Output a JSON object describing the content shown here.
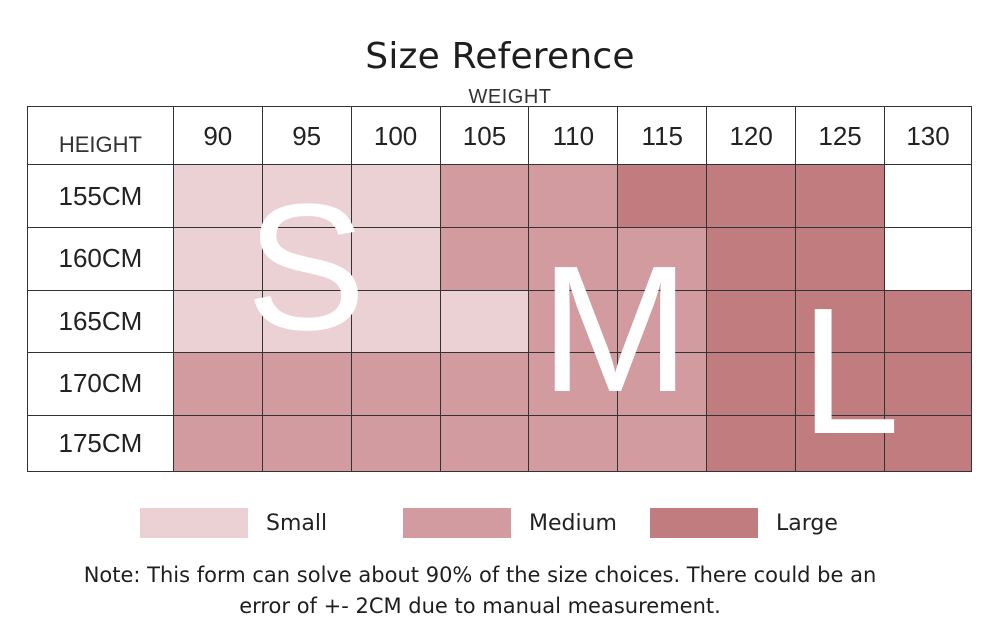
{
  "title": "Size Reference",
  "weight_label": "WEIGHT",
  "height_label": "HEIGHT",
  "weights": [
    "90",
    "95",
    "100",
    "105",
    "110",
    "115",
    "120",
    "125",
    "130"
  ],
  "rows": [
    {
      "height": "155CM",
      "sizes": [
        "S",
        "S",
        "S",
        "M",
        "M",
        "L",
        "L",
        "L",
        ""
      ]
    },
    {
      "height": "160CM",
      "sizes": [
        "S",
        "S",
        "S",
        "M",
        "M",
        "M",
        "L",
        "L",
        ""
      ]
    },
    {
      "height": "165CM",
      "sizes": [
        "S",
        "S",
        "S",
        "S",
        "M",
        "M",
        "L",
        "L",
        "L"
      ]
    },
    {
      "height": "170CM",
      "sizes": [
        "M",
        "M",
        "M",
        "M",
        "M",
        "M",
        "L",
        "L",
        "L"
      ]
    },
    {
      "height": "175CM",
      "sizes": [
        "M",
        "M",
        "M",
        "M",
        "M",
        "M",
        "L",
        "L",
        "L"
      ]
    }
  ],
  "size_letters": {
    "small": "S",
    "medium": "M",
    "large": "L"
  },
  "legend": [
    {
      "key": "S",
      "label": "Small",
      "color": "#ecd1d4"
    },
    {
      "key": "M",
      "label": "Medium",
      "color": "#d29b9f"
    },
    {
      "key": "L",
      "label": "Large",
      "color": "#c07c7e"
    }
  ],
  "note_line1": "Note: This form can solve about 90% of the size choices. There could be an",
  "note_line2": "error of +- 2CM due to manual measurement."
}
